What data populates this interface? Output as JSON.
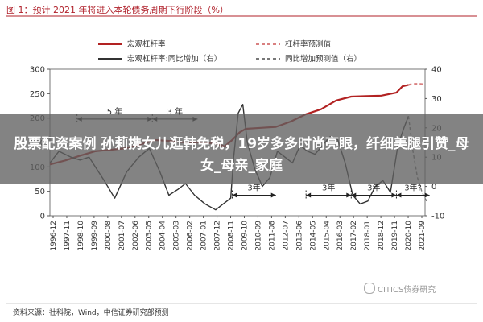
{
  "figure_title": "图 1：预计 2021 年将进入本轮债务周期下行阶段（%）",
  "overlay": {
    "text": "股票配资案例 孙莉携女儿逛韩免税，19岁多多时尚亮眼，纤细美腿引赞_母女_母亲_家庭"
  },
  "source": "资料来源：社科院，Wind，中信证券研究部预测",
  "watermark": "CITICS债券研究",
  "chart_data": {
    "type": "line",
    "x_ticks": [
      "1996-12",
      "1997-11",
      "1998-10",
      "1999-09",
      "2000-08",
      "2001-07",
      "2002-06",
      "2003-05",
      "2004-04",
      "2005-03",
      "2006-02",
      "2007-01",
      "2007-12",
      "2008-11",
      "2009-10",
      "2010-09",
      "2011-08",
      "2012-07",
      "2013-06",
      "2014-05",
      "2015-04",
      "2016-03",
      "2017-02",
      "2018-01",
      "2018-12",
      "2019-11",
      "2020-10",
      "2021-09"
    ],
    "y_left": {
      "range": [
        0,
        300
      ],
      "ticks": [
        0,
        50,
        100,
        150,
        200,
        250,
        300
      ]
    },
    "y_right": {
      "range": [
        -10,
        40
      ],
      "ticks": [
        -10,
        0,
        10,
        20,
        30,
        40
      ]
    },
    "legend": [
      {
        "label": "宏观杠杆率",
        "color": "#b22222",
        "dash": false
      },
      {
        "label": "杠杆率预测值",
        "color": "#d98080",
        "dash": true
      },
      {
        "label": "宏观杠杆率:同比增加（右）",
        "color": "#333333",
        "dash": false
      },
      {
        "label": "同比增加预测值（右）",
        "color": "#777777",
        "dash": true
      }
    ],
    "series": [
      {
        "name": "宏观杠杆率",
        "axis": "left",
        "color": "#b22222",
        "x": [
          1996.9,
          1997.9,
          1998.9,
          1999.9,
          2000.9,
          2001.9,
          2002.9,
          2003.9,
          2004.9,
          2005.9,
          2006.9,
          2007.9,
          2008.5,
          2009.0,
          2009.5,
          2009.9,
          2010.9,
          2011.9,
          2012.9,
          2013.9,
          2014.9,
          2015.9,
          2016.9,
          2017.9,
          2018.9,
          2019.9,
          2020.3,
          2020.7
        ],
        "y": [
          105,
          113,
          123,
          132,
          135,
          138,
          146,
          155,
          153,
          150,
          150,
          148,
          142,
          155,
          171,
          178,
          180,
          182,
          193,
          208,
          218,
          236,
          244,
          245,
          246,
          252,
          265,
          268
        ]
      },
      {
        "name": "杠杆率预测值",
        "axis": "left",
        "color": "#d98080",
        "dash": true,
        "x": [
          2020.7,
          2021.0,
          2021.4,
          2021.8
        ],
        "y": [
          268,
          270,
          270,
          269
        ]
      },
      {
        "name": "宏观杠杆率:同比增加（右）",
        "axis": "right",
        "color": "#333333",
        "x": [
          1996.9,
          1997.5,
          1998.3,
          1998.9,
          1999.5,
          2000.0,
          2000.5,
          2001.2,
          2002.0,
          2002.8,
          2003.5,
          2004.2,
          2004.8,
          2005.4,
          2005.9,
          2006.5,
          2007.2,
          2007.9,
          2008.4,
          2008.9,
          2009.1,
          2009.4,
          2009.7,
          2010.0,
          2010.5,
          2011.0,
          2011.5,
          2012.0,
          2012.5,
          2013.0,
          2013.5,
          2014.0,
          2014.5,
          2015.0,
          2015.5,
          2016.0,
          2016.5,
          2017.0,
          2017.5,
          2018.0,
          2018.5,
          2019.0,
          2019.5,
          2020.0,
          2020.4,
          2020.7
        ],
        "y": [
          8,
          12,
          10,
          9,
          10,
          6,
          2,
          -4,
          5,
          10,
          13,
          5,
          -3,
          -1,
          1,
          -3,
          -6,
          -8,
          -6,
          -4,
          10,
          25,
          28,
          15,
          6,
          0,
          3,
          12,
          10,
          8,
          14,
          12,
          11,
          14,
          17,
          16,
          8,
          -3,
          -6,
          -5,
          0,
          2,
          -2,
          14,
          20,
          24
        ]
      },
      {
        "name": "同比增加预测值（右）",
        "axis": "right",
        "color": "#777777",
        "dash": true,
        "x": [
          2020.7,
          2021.0,
          2021.3,
          2021.6,
          2021.9
        ],
        "y": [
          24,
          12,
          3,
          -2,
          -5
        ]
      }
    ],
    "annotations": [
      {
        "text": "5 年",
        "x_from": 1998.7,
        "x_to": 2003.7,
        "y": 23
      },
      {
        "text": "3 年",
        "x_from": 2003.7,
        "x_to": 2006.7,
        "y": 23
      },
      {
        "text": "3年",
        "x_from": 2009.0,
        "x_to": 2011.9,
        "y": -3
      },
      {
        "text": "3年",
        "x_from": 2013.9,
        "x_to": 2016.9,
        "y": -3
      },
      {
        "text": "3年",
        "x_from": 2016.9,
        "x_to": 2019.9,
        "y": -3
      },
      {
        "text": "3年?",
        "x_from": 2019.9,
        "x_to": 2022.1,
        "y": -3
      }
    ]
  }
}
